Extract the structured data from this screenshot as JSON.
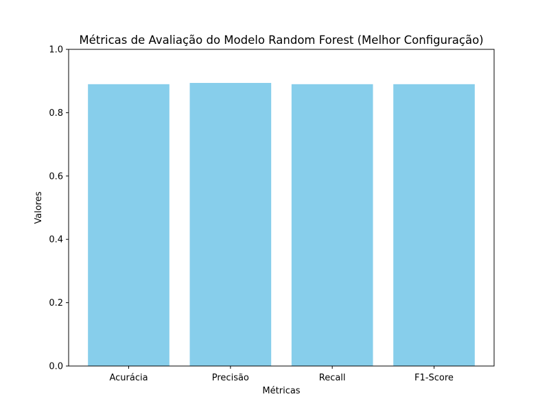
{
  "chart_data": {
    "type": "bar",
    "title": "Métricas de Avaliação do Modelo Random Forest (Melhor Configuração)",
    "xlabel": "Métricas",
    "ylabel": "Valores",
    "categories": [
      "Acurácia",
      "Precisão",
      "Recall",
      "F1-Score"
    ],
    "values": [
      0.89,
      0.894,
      0.89,
      0.89
    ],
    "ylim": [
      0,
      1.0
    ],
    "yticks": [
      "0.0",
      "0.2",
      "0.4",
      "0.6",
      "0.8",
      "1.0"
    ],
    "grid": false,
    "bar_color": "#87ceeb"
  }
}
